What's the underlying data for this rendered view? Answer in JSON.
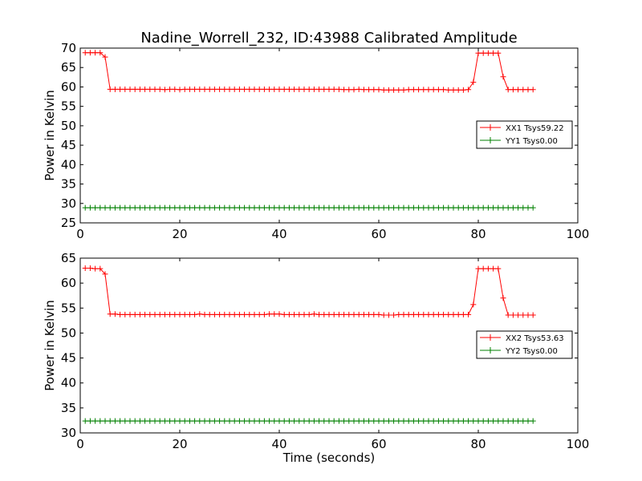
{
  "chart_data": [
    {
      "type": "line",
      "title": "Nadine_Worrell_232, ID:43988 Calibrated Amplitude",
      "xlabel": "",
      "ylabel": "Power in Kelvin",
      "xlim": [
        0,
        100
      ],
      "ylim": [
        25,
        70
      ],
      "xticks": [
        "0",
        "20",
        "40",
        "60",
        "80",
        "100"
      ],
      "yticks": [
        "25",
        "30",
        "35",
        "40",
        "45",
        "50",
        "55",
        "60",
        "65",
        "70"
      ],
      "legend_position": "center-right",
      "series": [
        {
          "name": "XX1 Tsys59.22",
          "color": "#ff0000",
          "x": [
            1,
            2,
            3,
            4,
            5,
            6,
            7,
            8,
            9,
            10,
            11,
            12,
            13,
            14,
            15,
            16,
            17,
            18,
            19,
            20,
            21,
            22,
            23,
            24,
            25,
            26,
            27,
            28,
            29,
            30,
            31,
            32,
            33,
            34,
            35,
            36,
            37,
            38,
            39,
            40,
            41,
            42,
            43,
            44,
            45,
            46,
            47,
            48,
            49,
            50,
            51,
            52,
            53,
            54,
            55,
            56,
            57,
            58,
            59,
            60,
            61,
            62,
            63,
            64,
            65,
            66,
            67,
            68,
            69,
            70,
            71,
            72,
            73,
            74,
            75,
            76,
            77,
            78,
            79,
            80,
            81,
            82,
            83,
            84,
            85,
            86,
            87,
            88,
            89,
            90,
            91
          ],
          "y": [
            68.8,
            68.8,
            68.8,
            68.8,
            67.7,
            59.4,
            59.4,
            59.4,
            59.4,
            59.4,
            59.4,
            59.4,
            59.4,
            59.4,
            59.4,
            59.4,
            59.3,
            59.4,
            59.4,
            59.3,
            59.4,
            59.4,
            59.4,
            59.4,
            59.4,
            59.4,
            59.4,
            59.4,
            59.4,
            59.4,
            59.4,
            59.4,
            59.4,
            59.4,
            59.4,
            59.4,
            59.4,
            59.4,
            59.4,
            59.4,
            59.4,
            59.4,
            59.4,
            59.4,
            59.4,
            59.4,
            59.4,
            59.4,
            59.4,
            59.4,
            59.4,
            59.4,
            59.3,
            59.3,
            59.3,
            59.4,
            59.3,
            59.3,
            59.3,
            59.3,
            59.2,
            59.2,
            59.2,
            59.2,
            59.2,
            59.3,
            59.3,
            59.3,
            59.3,
            59.3,
            59.3,
            59.3,
            59.3,
            59.2,
            59.2,
            59.2,
            59.2,
            59.3,
            61.2,
            68.7,
            68.7,
            68.7,
            68.7,
            68.7,
            62.6,
            59.3,
            59.3,
            59.3,
            59.3,
            59.3,
            59.3
          ]
        },
        {
          "name": "YY1 Tsys0.00",
          "color": "#008000",
          "x": [
            1,
            2,
            3,
            4,
            5,
            6,
            7,
            8,
            9,
            10,
            11,
            12,
            13,
            14,
            15,
            16,
            17,
            18,
            19,
            20,
            21,
            22,
            23,
            24,
            25,
            26,
            27,
            28,
            29,
            30,
            31,
            32,
            33,
            34,
            35,
            36,
            37,
            38,
            39,
            40,
            41,
            42,
            43,
            44,
            45,
            46,
            47,
            48,
            49,
            50,
            51,
            52,
            53,
            54,
            55,
            56,
            57,
            58,
            59,
            60,
            61,
            62,
            63,
            64,
            65,
            66,
            67,
            68,
            69,
            70,
            71,
            72,
            73,
            74,
            75,
            76,
            77,
            78,
            79,
            80,
            81,
            82,
            83,
            84,
            85,
            86,
            87,
            88,
            89,
            90,
            91
          ],
          "y": [
            28.9,
            28.9,
            28.9,
            28.9,
            28.9,
            28.9,
            28.9,
            28.9,
            28.9,
            28.9,
            28.9,
            28.9,
            28.9,
            28.9,
            28.9,
            28.9,
            28.9,
            28.9,
            28.9,
            28.9,
            28.9,
            28.9,
            28.9,
            28.9,
            28.9,
            28.9,
            28.9,
            28.9,
            28.9,
            28.9,
            28.9,
            28.9,
            28.9,
            28.9,
            28.9,
            28.9,
            28.9,
            28.9,
            28.9,
            28.9,
            28.9,
            28.9,
            28.9,
            28.9,
            28.9,
            28.9,
            28.9,
            28.9,
            28.9,
            28.9,
            28.9,
            28.9,
            28.9,
            28.9,
            28.9,
            28.9,
            28.9,
            28.9,
            28.9,
            28.9,
            28.9,
            28.9,
            28.9,
            28.9,
            28.9,
            28.9,
            28.9,
            28.9,
            28.9,
            28.9,
            28.9,
            28.9,
            28.9,
            28.9,
            28.9,
            28.9,
            28.9,
            28.9,
            28.9,
            28.9,
            28.9,
            28.9,
            28.9,
            28.9,
            28.9,
            28.9,
            28.9,
            28.9,
            28.9,
            28.9,
            28.9
          ]
        }
      ]
    },
    {
      "type": "line",
      "title": "",
      "xlabel": "Time (seconds)",
      "ylabel": "Power in Kelvin",
      "xlim": [
        0,
        100
      ],
      "ylim": [
        30,
        65
      ],
      "xticks": [
        "0",
        "20",
        "40",
        "60",
        "80",
        "100"
      ],
      "yticks": [
        "30",
        "35",
        "40",
        "45",
        "50",
        "55",
        "60",
        "65"
      ],
      "legend_position": "center-right",
      "series": [
        {
          "name": "XX2 Tsys53.63",
          "color": "#ff0000",
          "x": [
            1,
            2,
            3,
            4,
            5,
            6,
            7,
            8,
            9,
            10,
            11,
            12,
            13,
            14,
            15,
            16,
            17,
            18,
            19,
            20,
            21,
            22,
            23,
            24,
            25,
            26,
            27,
            28,
            29,
            30,
            31,
            32,
            33,
            34,
            35,
            36,
            37,
            38,
            39,
            40,
            41,
            42,
            43,
            44,
            45,
            46,
            47,
            48,
            49,
            50,
            51,
            52,
            53,
            54,
            55,
            56,
            57,
            58,
            59,
            60,
            61,
            62,
            63,
            64,
            65,
            66,
            67,
            68,
            69,
            70,
            71,
            72,
            73,
            74,
            75,
            76,
            77,
            78,
            79,
            80,
            81,
            82,
            83,
            84,
            85,
            86,
            87,
            88,
            89,
            90,
            91
          ],
          "y": [
            63.0,
            63.0,
            62.9,
            62.9,
            61.8,
            53.8,
            53.8,
            53.7,
            53.7,
            53.7,
            53.7,
            53.7,
            53.7,
            53.7,
            53.7,
            53.7,
            53.7,
            53.7,
            53.7,
            53.7,
            53.7,
            53.7,
            53.7,
            53.8,
            53.7,
            53.7,
            53.7,
            53.7,
            53.7,
            53.7,
            53.7,
            53.7,
            53.7,
            53.7,
            53.7,
            53.7,
            53.7,
            53.8,
            53.8,
            53.8,
            53.7,
            53.7,
            53.7,
            53.7,
            53.7,
            53.7,
            53.8,
            53.7,
            53.7,
            53.7,
            53.7,
            53.7,
            53.7,
            53.7,
            53.7,
            53.7,
            53.7,
            53.7,
            53.7,
            53.7,
            53.6,
            53.6,
            53.6,
            53.7,
            53.7,
            53.7,
            53.7,
            53.7,
            53.7,
            53.7,
            53.7,
            53.7,
            53.7,
            53.7,
            53.7,
            53.7,
            53.7,
            53.7,
            55.7,
            62.9,
            62.9,
            62.9,
            62.9,
            62.9,
            57.0,
            53.6,
            53.6,
            53.6,
            53.6,
            53.6,
            53.6
          ]
        },
        {
          "name": "YY2 Tsys0.00",
          "color": "#008000",
          "x": [
            1,
            2,
            3,
            4,
            5,
            6,
            7,
            8,
            9,
            10,
            11,
            12,
            13,
            14,
            15,
            16,
            17,
            18,
            19,
            20,
            21,
            22,
            23,
            24,
            25,
            26,
            27,
            28,
            29,
            30,
            31,
            32,
            33,
            34,
            35,
            36,
            37,
            38,
            39,
            40,
            41,
            42,
            43,
            44,
            45,
            46,
            47,
            48,
            49,
            50,
            51,
            52,
            53,
            54,
            55,
            56,
            57,
            58,
            59,
            60,
            61,
            62,
            63,
            64,
            65,
            66,
            67,
            68,
            69,
            70,
            71,
            72,
            73,
            74,
            75,
            76,
            77,
            78,
            79,
            80,
            81,
            82,
            83,
            84,
            85,
            86,
            87,
            88,
            89,
            90,
            91
          ],
          "y": [
            32.4,
            32.4,
            32.4,
            32.4,
            32.4,
            32.4,
            32.4,
            32.4,
            32.4,
            32.4,
            32.4,
            32.4,
            32.4,
            32.4,
            32.4,
            32.4,
            32.4,
            32.4,
            32.4,
            32.4,
            32.4,
            32.4,
            32.4,
            32.4,
            32.4,
            32.4,
            32.4,
            32.4,
            32.4,
            32.4,
            32.4,
            32.4,
            32.4,
            32.4,
            32.4,
            32.4,
            32.4,
            32.4,
            32.4,
            32.4,
            32.4,
            32.4,
            32.4,
            32.4,
            32.4,
            32.4,
            32.4,
            32.4,
            32.4,
            32.4,
            32.4,
            32.4,
            32.4,
            32.4,
            32.4,
            32.4,
            32.4,
            32.4,
            32.4,
            32.4,
            32.4,
            32.4,
            32.4,
            32.4,
            32.4,
            32.4,
            32.4,
            32.4,
            32.4,
            32.4,
            32.4,
            32.4,
            32.4,
            32.4,
            32.4,
            32.4,
            32.4,
            32.4,
            32.4,
            32.4,
            32.4,
            32.4,
            32.4,
            32.4,
            32.4,
            32.4,
            32.4,
            32.4,
            32.4,
            32.4,
            32.4
          ]
        }
      ]
    }
  ]
}
